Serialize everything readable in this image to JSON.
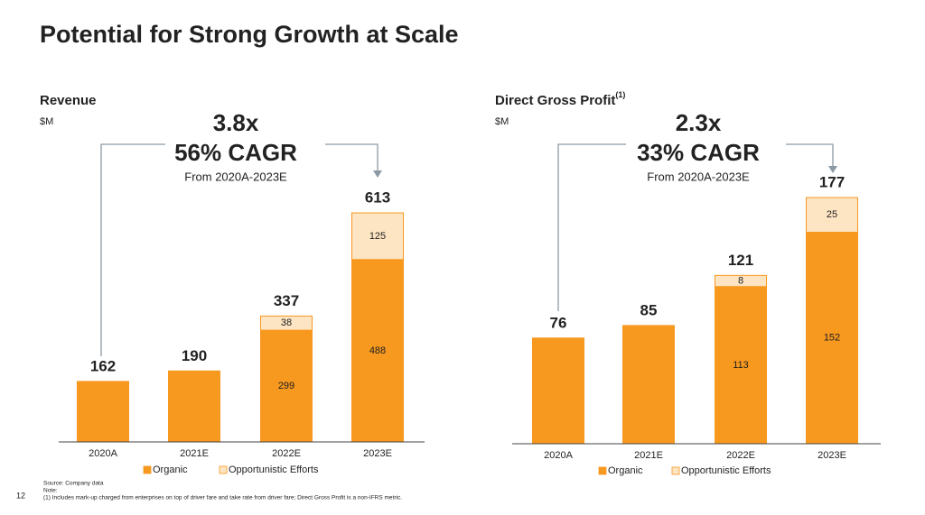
{
  "title": "Potential for Strong Growth at Scale",
  "page_number": "12",
  "footnotes": {
    "source": "Source: Company data",
    "note": "Note:",
    "note_1": "(1) Includes mark-up charged from enterprises on top of driver fare and take rate from driver fare; Direct Gross Profit is a non-IFRS metric."
  },
  "chart_data": [
    {
      "type": "stacked_bar",
      "title": "Revenue",
      "unit": "$M",
      "annotation": {
        "multiple": "3.8x",
        "cagr": "56% CAGR",
        "period": "From 2020A-2023E"
      },
      "categories": [
        "2020A",
        "2021E",
        "2022E",
        "2023E"
      ],
      "series": [
        {
          "name": "Organic",
          "color": "#f7981f",
          "values": [
            162,
            190,
            299,
            488
          ]
        },
        {
          "name": "Opportunistic Efforts",
          "color": "#fde4c2",
          "values": [
            null,
            null,
            38,
            125
          ]
        }
      ],
      "totals": [
        162,
        190,
        337,
        613
      ]
    },
    {
      "type": "stacked_bar",
      "title": "Direct Gross Profit",
      "title_note": "(1)",
      "unit": "$M",
      "annotation": {
        "multiple": "2.3x",
        "cagr": "33% CAGR",
        "period": "From 2020A-2023E"
      },
      "categories": [
        "2020A",
        "2021E",
        "2022E",
        "2023E"
      ],
      "series": [
        {
          "name": "Organic",
          "color": "#f7981f",
          "values": [
            76,
            85,
            113,
            152
          ]
        },
        {
          "name": "Opportunistic Efforts",
          "color": "#fde4c2",
          "values": [
            null,
            null,
            8,
            25
          ]
        }
      ],
      "totals": [
        76,
        85,
        121,
        177
      ]
    }
  ]
}
